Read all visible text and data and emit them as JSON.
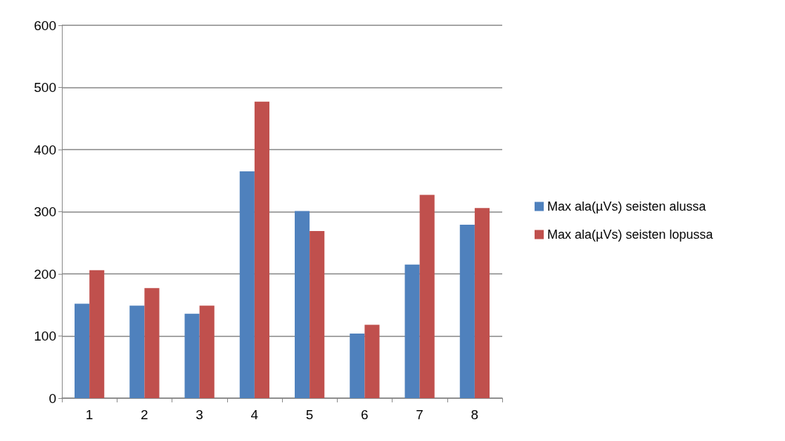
{
  "chart_data": {
    "type": "bar",
    "categories": [
      "1",
      "2",
      "3",
      "4",
      "5",
      "6",
      "7",
      "8"
    ],
    "series": [
      {
        "name": "Max ala(µVs) seisten alussa",
        "color": "#4f81bd",
        "values": [
          152,
          149,
          136,
          365,
          301,
          104,
          215,
          279
        ]
      },
      {
        "name": "Max ala(µVs) seisten lopussa",
        "color": "#c0504d",
        "values": [
          206,
          177,
          149,
          477,
          269,
          118,
          327,
          306
        ]
      }
    ],
    "ylim": [
      0,
      600
    ],
    "yticks": [
      0,
      100,
      200,
      300,
      400,
      500,
      600
    ],
    "grid": "y",
    "legend": "right"
  }
}
